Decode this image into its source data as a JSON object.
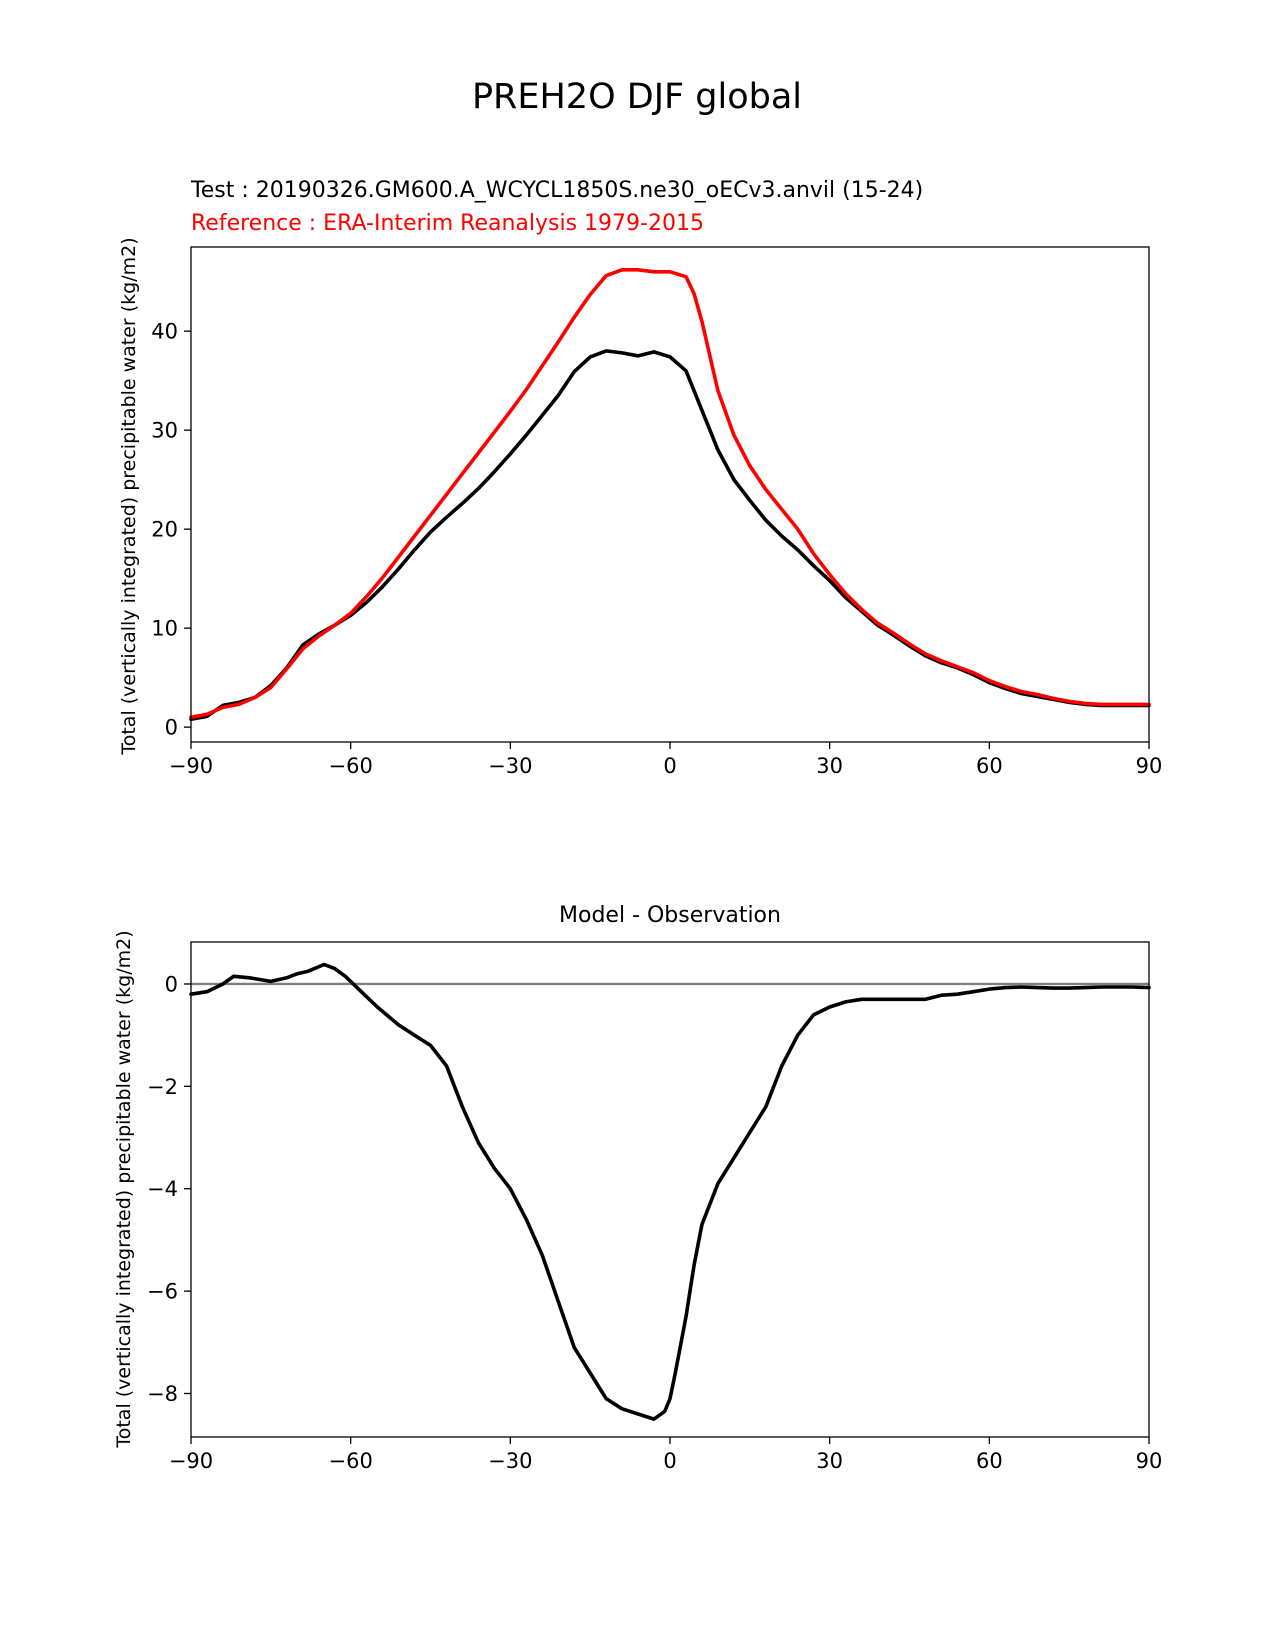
{
  "figure": {
    "suptitle": "PREH2O DJF global"
  },
  "chart_data": [
    {
      "type": "line",
      "title_test": "Test : 20190326.GM600.A_WCYCL1850S.ne30_oECv3.anvil (15-24)",
      "title_reference": "Reference : ERA-Interim Reanalysis 1979-2015",
      "xlabel": "",
      "ylabel": "Total (vertically integrated) precipitable water (kg/m2)",
      "xlim": [
        -90,
        90
      ],
      "ylim": [
        -1.5,
        48.5
      ],
      "xticks": [
        -90,
        -60,
        -30,
        0,
        30,
        60,
        90
      ],
      "xtick_labels": [
        "−90",
        "−60",
        "−30",
        "0",
        "30",
        "60",
        "90"
      ],
      "yticks": [
        0,
        10,
        20,
        30,
        40
      ],
      "ytick_labels": [
        "0",
        "10",
        "20",
        "30",
        "40"
      ],
      "grid": false,
      "x": [
        -90,
        -87,
        -84,
        -81,
        -78,
        -75,
        -72,
        -69,
        -66,
        -63,
        -60,
        -57,
        -54,
        -51,
        -48,
        -45,
        -42,
        -39,
        -36,
        -33,
        -30,
        -27,
        -24,
        -21,
        -18,
        -15,
        -12,
        -9,
        -6,
        -3,
        0,
        3,
        4.5,
        6,
        7.5,
        9,
        12,
        15,
        18,
        21,
        24,
        27,
        30,
        33,
        36,
        39,
        42,
        45,
        48,
        51,
        54,
        57,
        60,
        63,
        66,
        69,
        72,
        75,
        78,
        81,
        84,
        87,
        90
      ],
      "series": [
        {
          "name": "Test",
          "color": "#000000",
          "values": [
            0.8,
            1.1,
            2.2,
            2.5,
            3.0,
            4.2,
            6.0,
            8.3,
            9.4,
            10.3,
            11.3,
            12.6,
            14.2,
            16.0,
            17.9,
            19.7,
            21.2,
            22.6,
            24.1,
            25.8,
            27.6,
            29.5,
            31.5,
            33.5,
            35.9,
            37.4,
            38.0,
            37.8,
            37.5,
            37.9,
            37.4,
            36.0,
            34.0,
            32.0,
            30.0,
            28.0,
            25.0,
            22.9,
            20.9,
            19.3,
            17.9,
            16.3,
            14.8,
            13.1,
            11.7,
            10.3,
            9.3,
            8.2,
            7.2,
            6.5,
            6.0,
            5.3,
            4.5,
            3.9,
            3.4,
            3.1,
            2.8,
            2.5,
            2.3,
            2.2,
            2.2,
            2.2,
            2.2
          ]
        },
        {
          "name": "Reference",
          "color": "#ff0000",
          "values": [
            1.0,
            1.3,
            2.0,
            2.3,
            3.0,
            4.0,
            5.9,
            7.9,
            9.2,
            10.3,
            11.5,
            13.2,
            15.1,
            17.2,
            19.3,
            21.4,
            23.5,
            25.6,
            27.7,
            29.8,
            31.9,
            34.1,
            36.5,
            38.9,
            41.4,
            43.7,
            45.6,
            46.2,
            46.2,
            46.0,
            46.0,
            45.5,
            43.8,
            41.0,
            37.5,
            34.0,
            29.5,
            26.4,
            24.0,
            22.0,
            20.0,
            17.5,
            15.4,
            13.5,
            11.9,
            10.5,
            9.5,
            8.4,
            7.4,
            6.7,
            6.1,
            5.5,
            4.7,
            4.1,
            3.6,
            3.3,
            2.9,
            2.6,
            2.4,
            2.3,
            2.3,
            2.3,
            2.3
          ]
        }
      ]
    },
    {
      "type": "line",
      "title": "Model - Observation",
      "xlabel": "",
      "ylabel": "Total (vertically integrated) precipitable water (kg/m2)",
      "xlim": [
        -90,
        90
      ],
      "ylim": [
        -8.85,
        0.82
      ],
      "xticks": [
        -90,
        -60,
        -30,
        0,
        30,
        60,
        90
      ],
      "xtick_labels": [
        "−90",
        "−60",
        "−30",
        "0",
        "30",
        "60",
        "90"
      ],
      "yticks": [
        0,
        -2,
        -4,
        -6,
        -8
      ],
      "ytick_labels": [
        "0",
        "−2",
        "−4",
        "−6",
        "−8"
      ],
      "grid": false,
      "zero_line": {
        "y": 0,
        "color": "#808080"
      },
      "x": [
        -90,
        -87,
        -84,
        -82,
        -79,
        -75,
        -72,
        -70,
        -68,
        -65,
        -63,
        -61,
        -58,
        -55,
        -51,
        -48,
        -45,
        -42,
        -39,
        -36,
        -33,
        -30,
        -27,
        -24,
        -21,
        -18,
        -15,
        -12,
        -9,
        -6,
        -3,
        -1,
        0,
        1,
        3,
        4.5,
        6,
        9,
        12,
        15,
        18,
        21,
        24,
        27,
        30,
        33,
        36,
        39,
        42,
        45,
        48,
        51,
        54,
        57,
        60,
        63,
        66,
        69,
        72,
        75,
        78,
        81,
        84,
        87,
        90
      ],
      "series": [
        {
          "name": "Model - Observation",
          "color": "#000000",
          "values": [
            -0.2,
            -0.15,
            0.0,
            0.15,
            0.12,
            0.05,
            0.12,
            0.2,
            0.25,
            0.38,
            0.3,
            0.15,
            -0.15,
            -0.45,
            -0.8,
            -1.0,
            -1.2,
            -1.6,
            -2.4,
            -3.1,
            -3.6,
            -4.0,
            -4.6,
            -5.3,
            -6.2,
            -7.1,
            -7.6,
            -8.1,
            -8.3,
            -8.4,
            -8.5,
            -8.35,
            -8.1,
            -7.6,
            -6.5,
            -5.5,
            -4.7,
            -3.9,
            -3.4,
            -2.9,
            -2.4,
            -1.6,
            -1.0,
            -0.6,
            -0.45,
            -0.35,
            -0.3,
            -0.3,
            -0.3,
            -0.3,
            -0.3,
            -0.22,
            -0.2,
            -0.15,
            -0.1,
            -0.07,
            -0.06,
            -0.07,
            -0.08,
            -0.08,
            -0.07,
            -0.06,
            -0.06,
            -0.06,
            -0.07
          ]
        }
      ]
    }
  ]
}
